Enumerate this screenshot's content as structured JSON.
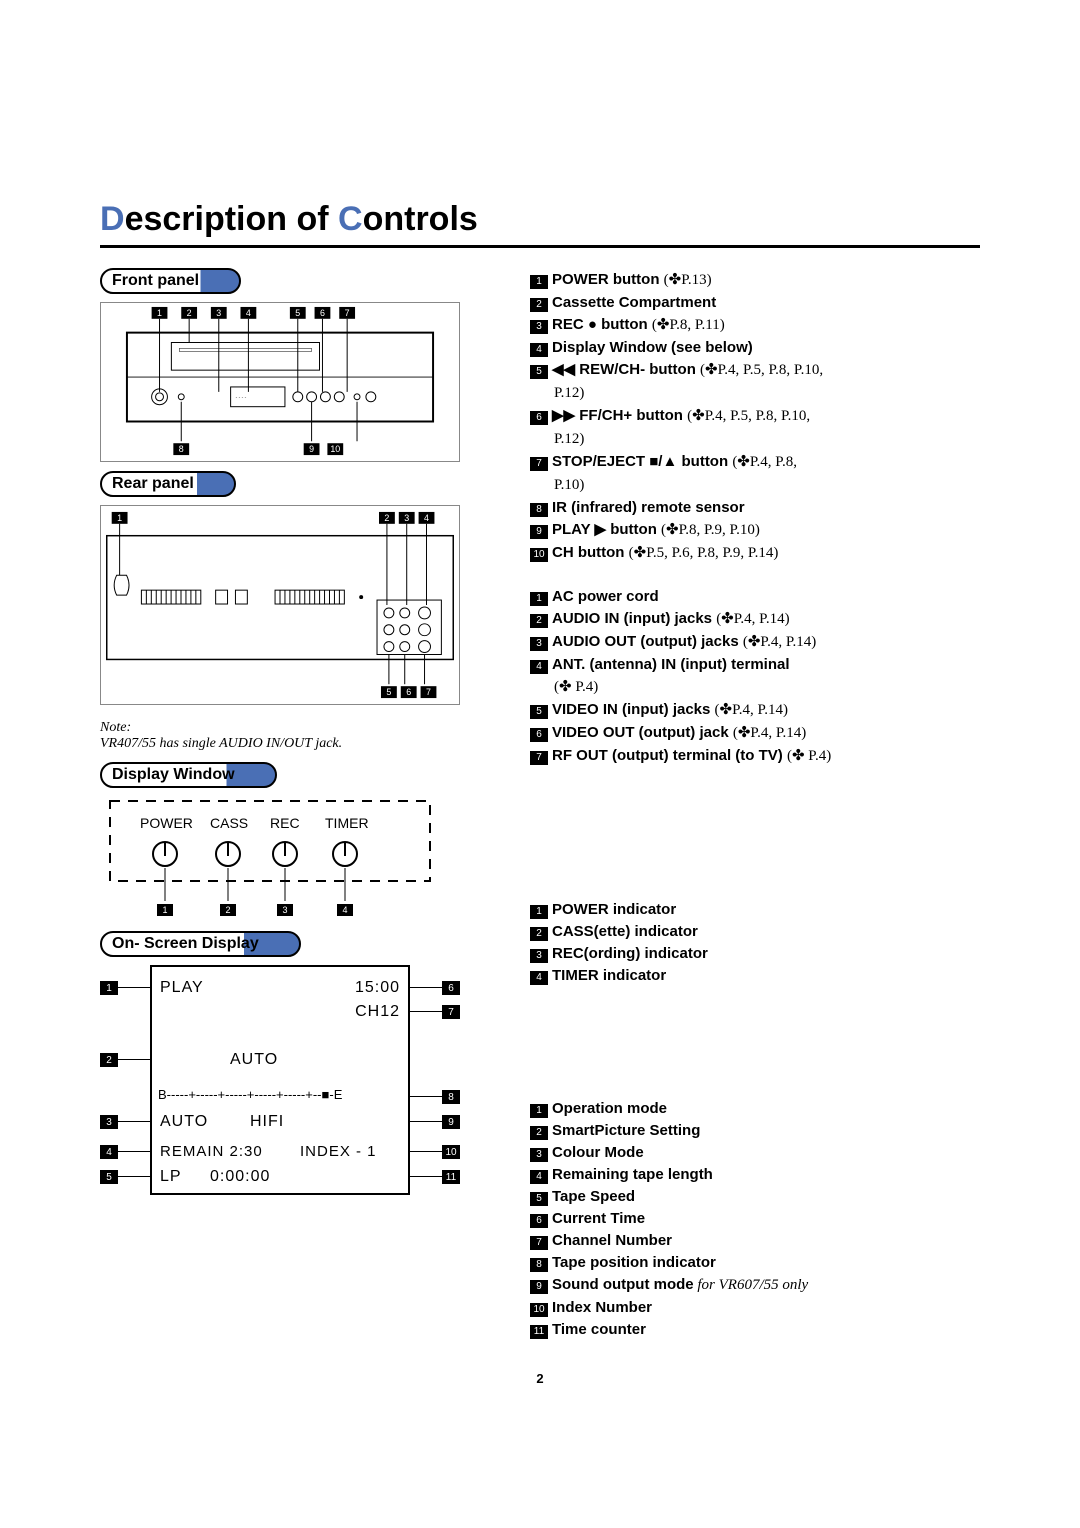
{
  "title": {
    "d": "D",
    "escription": "escription of ",
    "c": "C",
    "ontrols": "ontrols"
  },
  "sections": {
    "front": "Front panel",
    "rear": "Rear panel",
    "display": "Display Window",
    "osd": "On- Screen Display"
  },
  "note": {
    "label": "Note:",
    "text": "VR407/55 has single AUDIO IN/OUT jack."
  },
  "front_legend": [
    {
      "n": "1",
      "bold": "POWER button ",
      "ref": "(✤P.13)"
    },
    {
      "n": "2",
      "bold": "Cassette Compartment",
      "ref": ""
    },
    {
      "n": "3",
      "bold": "REC ● button ",
      "ref": "(✤P.8, P.11)"
    },
    {
      "n": "4",
      "bold": "Display Window (see below)",
      "ref": ""
    },
    {
      "n": "5",
      "bold": "◀◀ REW/CH- button ",
      "ref": "(✤P.4, P.5, P.8, P.10,"
    },
    {
      "sub": "P.12)"
    },
    {
      "n": "6",
      "bold": "▶▶ FF/CH+  button ",
      "ref": "(✤P.4, P.5, P.8, P.10,"
    },
    {
      "sub": "P.12)"
    },
    {
      "n": "7",
      "bold": "STOP/EJECT ■/▲ button ",
      "ref": "(✤P.4, P.8,"
    },
    {
      "sub": "P.10)"
    },
    {
      "n": "8",
      "bold": "IR (infrared) remote sensor",
      "ref": ""
    },
    {
      "n": "9",
      "bold": "PLAY ▶ button ",
      "ref": "(✤P.8, P.9, P.10)"
    },
    {
      "n": "10",
      "bold": "CH button ",
      "ref": "(✤P.5, P.6, P.8, P.9, P.14)"
    }
  ],
  "rear_legend": [
    {
      "n": "1",
      "bold": "AC power cord",
      "ref": ""
    },
    {
      "n": "2",
      "bold": "AUDIO IN (input) jacks ",
      "ref": "(✤P.4, P.14)"
    },
    {
      "n": "3",
      "bold": "AUDIO OUT (output) jacks ",
      "ref": "(✤P.4, P.14)"
    },
    {
      "n": "4",
      "bold": "ANT. (antenna) IN (input) terminal",
      "ref": ""
    },
    {
      "sub": "(✤ P.4)"
    },
    {
      "n": "5",
      "bold": "VIDEO IN (input) jacks ",
      "ref": "(✤P.4, P.14)"
    },
    {
      "n": "6",
      "bold": "VIDEO OUT (output) jack ",
      "ref": "(✤P.4, P.14)"
    },
    {
      "n": "7",
      "bold": "RF OUT (output) terminal (to TV) ",
      "ref": "(✤ P.4)"
    }
  ],
  "display_labels": {
    "power": "POWER",
    "cass": "CASS",
    "rec": "REC",
    "timer": "TIMER"
  },
  "display_legend": [
    {
      "n": "1",
      "bold": "POWER indicator"
    },
    {
      "n": "2",
      "bold": "CASS(ette) indicator"
    },
    {
      "n": "3",
      "bold": "REC(ording) indicator"
    },
    {
      "n": "4",
      "bold": "TIMER indicator"
    }
  ],
  "osd": {
    "play": "PLAY",
    "time": "15:00",
    "ch": "CH12",
    "auto1": "AUTO",
    "bar": "B-----+-----+-----+-----+-----+--■-E",
    "auto2": "AUTO",
    "hifi": "HIFI",
    "remain": "REMAIN  2:30",
    "index": "INDEX - 1",
    "lp": "LP",
    "counter": "0:00:00"
  },
  "osd_legend": [
    {
      "n": "1",
      "bold": "Operation mode"
    },
    {
      "n": "2",
      "bold": "SmartPicture Setting"
    },
    {
      "n": "3",
      "bold": "Colour Mode"
    },
    {
      "n": "4",
      "bold": "Remaining tape length"
    },
    {
      "n": "5",
      "bold": "Tape Speed"
    },
    {
      "n": "6",
      "bold": "Current Time"
    },
    {
      "n": "7",
      "bold": "Channel Number"
    },
    {
      "n": "8",
      "bold": "Tape position indicator"
    },
    {
      "n": "9",
      "bold": "Sound output mode",
      "italic": "  for VR607/55 only"
    },
    {
      "n": "10",
      "bold": "Index Number"
    },
    {
      "n": "11",
      "bold": "Time counter"
    }
  ],
  "page_number": "2"
}
